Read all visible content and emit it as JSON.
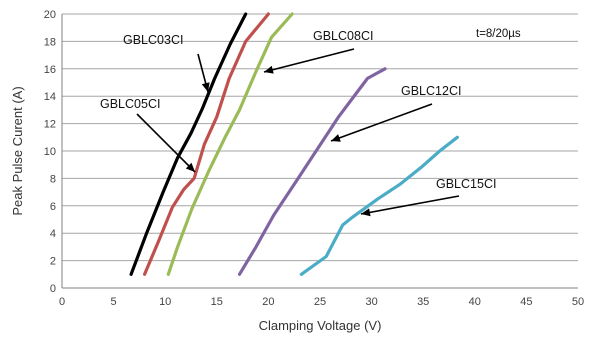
{
  "chart_data": {
    "type": "line",
    "title": "",
    "xlabel": "Clamping Voltage (V)",
    "ylabel": "Peak Pulse Curent (A)",
    "xlim": [
      0,
      50
    ],
    "ylim": [
      0,
      20
    ],
    "x_ticks": [
      "0",
      "5",
      "10",
      "15",
      "20",
      "25",
      "30",
      "35",
      "40",
      "45",
      "50"
    ],
    "y_ticks": [
      "0",
      "2",
      "4",
      "6",
      "8",
      "10",
      "12",
      "14",
      "16",
      "18",
      "20"
    ],
    "grid": "horizontal",
    "annotation": "t=8/20µs",
    "series": [
      {
        "name": "GBLC03CI",
        "color": "#000000",
        "points": [
          [
            6.7,
            1
          ],
          [
            8.2,
            4
          ],
          [
            9.8,
            7
          ],
          [
            11.2,
            9.5
          ],
          [
            12.5,
            11.3
          ],
          [
            13.6,
            13.1
          ],
          [
            14.8,
            15.3
          ],
          [
            16.3,
            17.8
          ],
          [
            17.8,
            20
          ]
        ]
      },
      {
        "name": "GBLC05CI",
        "color": "#c0504d",
        "points": [
          [
            8,
            1
          ],
          [
            9.4,
            3.5
          ],
          [
            10.7,
            5.9
          ],
          [
            11.8,
            7.2
          ],
          [
            12.8,
            8
          ],
          [
            13.8,
            10.5
          ],
          [
            15,
            12.5
          ],
          [
            16.2,
            15.3
          ],
          [
            17.8,
            18
          ],
          [
            20,
            20
          ]
        ]
      },
      {
        "name": "GBLC08CI",
        "color": "#9bbb59",
        "points": [
          [
            10.3,
            1
          ],
          [
            11.2,
            3
          ],
          [
            12.6,
            5.8
          ],
          [
            14.2,
            8.5
          ],
          [
            15.8,
            11
          ],
          [
            17.2,
            13
          ],
          [
            18.8,
            15.8
          ],
          [
            20.3,
            18.3
          ],
          [
            22.3,
            20
          ]
        ]
      },
      {
        "name": "GBLC12CI",
        "color": "#8064a2",
        "points": [
          [
            17.2,
            1
          ],
          [
            18.8,
            3
          ],
          [
            20.5,
            5.3
          ],
          [
            22.7,
            7.8
          ],
          [
            24.8,
            10.2
          ],
          [
            26.8,
            12.5
          ],
          [
            28.5,
            14.2
          ],
          [
            29.6,
            15.3
          ],
          [
            31.3,
            16
          ]
        ]
      },
      {
        "name": "GBLC15CI",
        "color": "#4bacc6",
        "points": [
          [
            23.2,
            1
          ],
          [
            25.6,
            2.3
          ],
          [
            27.2,
            4.6
          ],
          [
            28.2,
            5.2
          ],
          [
            30.6,
            6.5
          ],
          [
            32.8,
            7.6
          ],
          [
            34.8,
            8.8
          ],
          [
            36.6,
            10
          ],
          [
            38.3,
            11
          ]
        ]
      }
    ]
  },
  "labels": [
    {
      "series": "GBLC03CI",
      "text": "GBLC03CI"
    },
    {
      "series": "GBLC05CI",
      "text": "GBLC05CI"
    },
    {
      "series": "GBLC08CI",
      "text": "GBLC08CI"
    },
    {
      "series": "GBLC12CI",
      "text": "GBLC12CI"
    },
    {
      "series": "GBLC15CI",
      "text": "GBLC15CI"
    }
  ]
}
